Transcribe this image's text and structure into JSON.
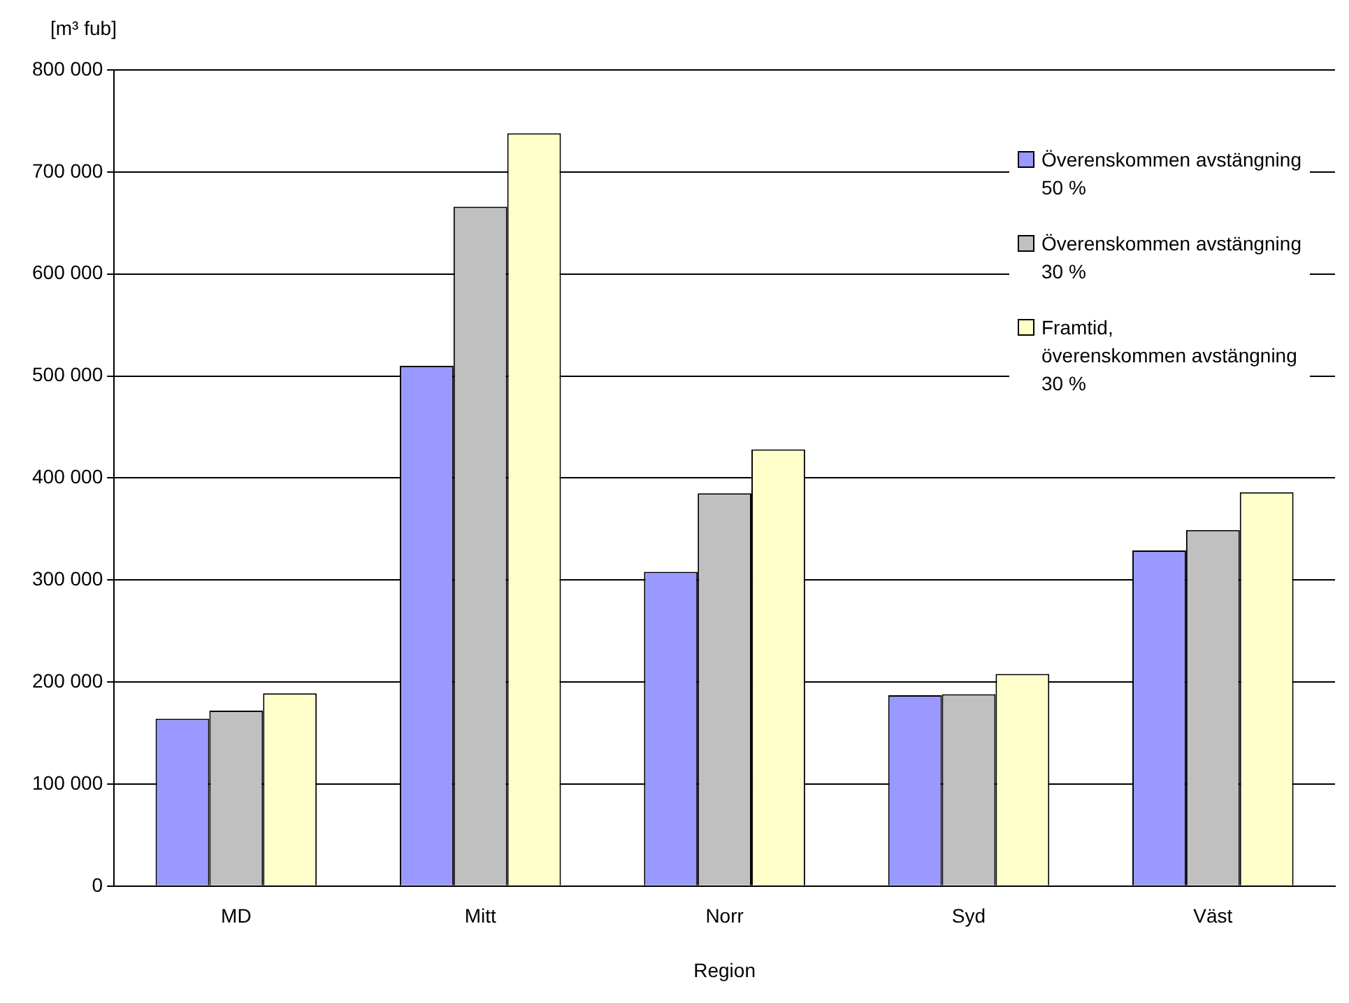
{
  "chart_data": {
    "type": "bar",
    "xlabel": "Region",
    "ylabel": "[m³ fub]",
    "categories": [
      "MD",
      "Mitt",
      "Norr",
      "Syd",
      "Väst"
    ],
    "series": [
      {
        "name": "Överenskommen avstängning\n 50 %",
        "color": "#9999ff",
        "values": [
          164000,
          510000,
          308000,
          187000,
          329000
        ]
      },
      {
        "name": "Överenskommen avstängning\n30 %",
        "color": "#c0c0c0",
        "values": [
          172000,
          666000,
          385000,
          188000,
          349000
        ]
      },
      {
        "name": "Framtid,\növerenskommen avstängning\n30 %",
        "color": "#ffffcc",
        "values": [
          189000,
          738000,
          428000,
          208000,
          386000
        ]
      }
    ],
    "ylim": [
      0,
      800000
    ],
    "yticks": [
      {
        "value": 0,
        "label": "0"
      },
      {
        "value": 100000,
        "label": "100 000"
      },
      {
        "value": 200000,
        "label": "200 000"
      },
      {
        "value": 300000,
        "label": "300 000"
      },
      {
        "value": 400000,
        "label": "400 000"
      },
      {
        "value": 500000,
        "label": "500 000"
      },
      {
        "value": 600000,
        "label": "600 000"
      },
      {
        "value": 700000,
        "label": "700 000"
      },
      {
        "value": 800000,
        "label": "800 000"
      }
    ],
    "grid": "y",
    "legend": "top right"
  }
}
